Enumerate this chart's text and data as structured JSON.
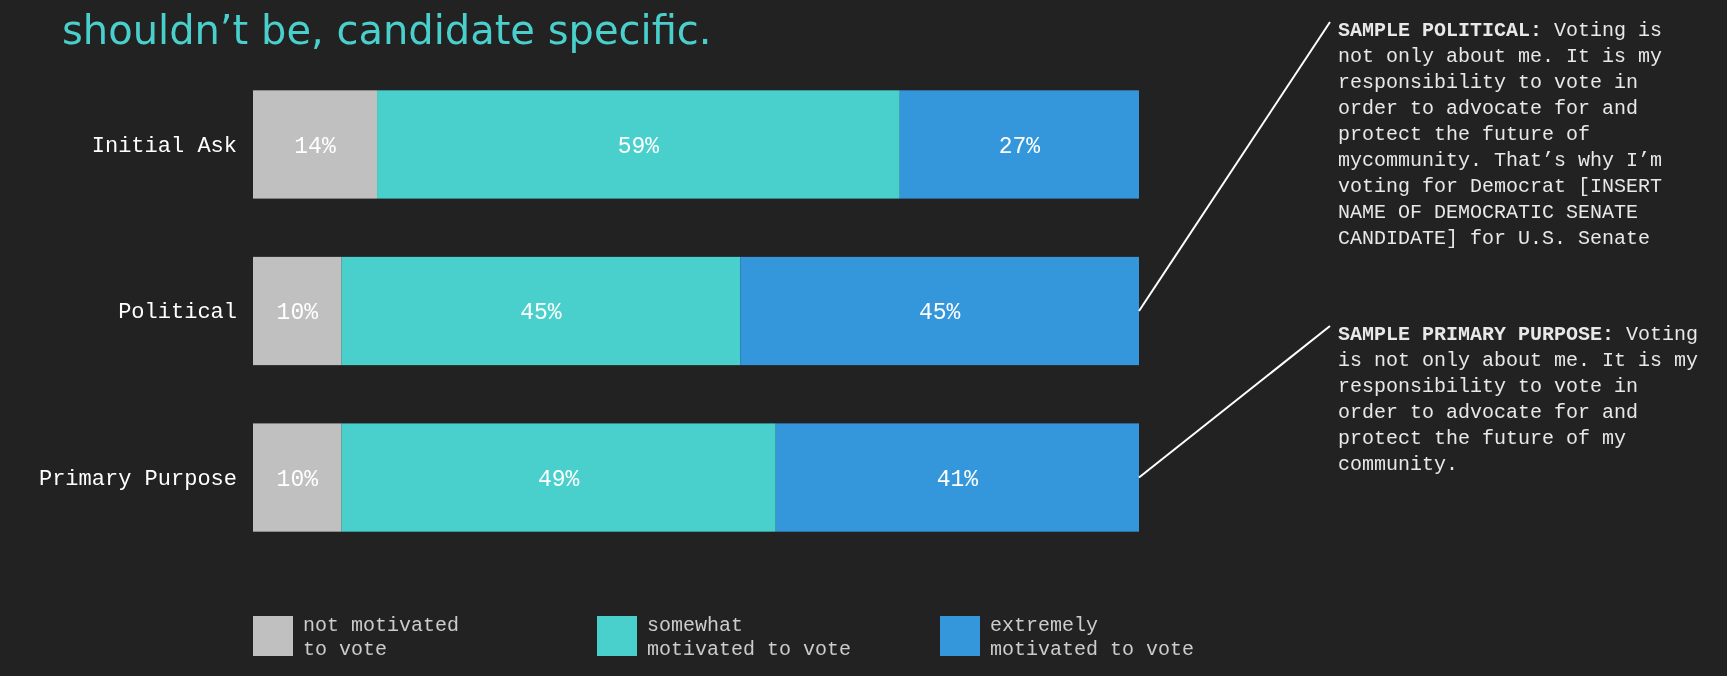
{
  "chart_data": {
    "type": "bar",
    "orientation": "horizontal",
    "stacked": true,
    "title": "shouldn’t be, candidate specific.",
    "categories": [
      "Initial Ask",
      "Political",
      "Primary Purpose"
    ],
    "series": [
      {
        "name": "not motivated to vote",
        "color": "#c0c0c0",
        "values": [
          14,
          10,
          10
        ],
        "value_labels": [
          "14%",
          "10%",
          "10%"
        ]
      },
      {
        "name": "somewhat motivated to vote",
        "color": "#4ad0cc",
        "values": [
          59,
          45,
          49
        ],
        "value_labels": [
          "59%",
          "45%",
          "49%"
        ]
      },
      {
        "name": "extremely motivated to vote",
        "color": "#3597db",
        "values": [
          27,
          45,
          41
        ],
        "value_labels": [
          "27%",
          "45%",
          "41%"
        ]
      }
    ],
    "tick_labels": "y",
    "legend": "bottom",
    "annotations": [
      {
        "text": "SAMPLE POLITICAL: Voting is not only about me. It is my responsibility to vote in order to advocate for and protect the future of mycommunity. That’s why I’m voting for Democrat [INSERT NAME OF DEMOCRATIC SENATE CANDIDATE] for U.S. Senate"
      },
      {
        "text": "SAMPLE PRIMARY PURPOSE: Voting is not only about me. It is my responsibility to vote in order to advocate for and protect the future of my community.",
        "x": 100,
        "y": "Primary Purpose"
      }
    ]
  }
}
